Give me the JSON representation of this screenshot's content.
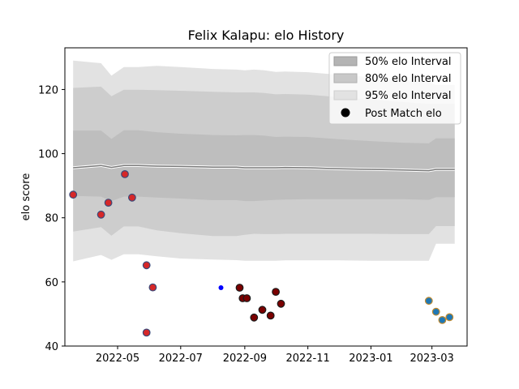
{
  "chart_data": {
    "type": "scatter",
    "title": "Felix Kalapu: elo History",
    "xlabel": "",
    "ylabel": "elo score",
    "xlim": [
      "2022-03-11",
      "2023-04-04"
    ],
    "ylim": [
      40,
      133
    ],
    "x_ticks": [
      "2022-05-01",
      "2022-07-01",
      "2022-09-01",
      "2022-11-01",
      "2023-01-01",
      "2023-03-01"
    ],
    "x_tick_labels": [
      "2022-05",
      "2022-07",
      "2022-09",
      "2022-11",
      "2023-01",
      "2023-03"
    ],
    "y_ticks": [
      40,
      60,
      80,
      100,
      120
    ],
    "y_tick_labels": [
      "40",
      "60",
      "80",
      "100",
      "120"
    ],
    "grid": false,
    "legend_position": "upper-right",
    "legend": [
      {
        "label": "50% elo Interval",
        "kind": "band",
        "color": "#b4b4b4"
      },
      {
        "label": "80% elo Interval",
        "kind": "band",
        "color": "#c8c8c8"
      },
      {
        "label": "95% elo Interval",
        "kind": "band",
        "color": "#e2e2e2"
      },
      {
        "label": "Post Match elo",
        "kind": "marker",
        "color": "#000000"
      }
    ],
    "interval_dates": [
      "2022-03-19",
      "2022-04-15",
      "2022-04-25",
      "2022-05-07",
      "2022-05-21",
      "2022-06-08",
      "2022-07-01",
      "2022-08-01",
      "2022-08-24",
      "2022-09-01",
      "2022-09-10",
      "2022-09-20",
      "2022-10-01",
      "2022-10-10",
      "2022-11-01",
      "2022-12-01",
      "2023-01-01",
      "2023-02-01",
      "2023-02-26",
      "2023-03-05",
      "2023-03-23"
    ],
    "mean": [
      95.6,
      96.3,
      95.7,
      96.3,
      96.3,
      96.1,
      96.0,
      95.8,
      95.8,
      95.6,
      95.6,
      95.6,
      95.6,
      95.7,
      95.6,
      95.3,
      95.1,
      94.9,
      94.7,
      95.1,
      95.1
    ],
    "bands": [
      {
        "name": "95% elo Interval",
        "color": "#e2e2e2",
        "upper": [
          129.0,
          128.2,
          124.3,
          127.0,
          127.0,
          127.4,
          127.0,
          126.4,
          126.2,
          126.0,
          126.2,
          126.0,
          125.5,
          125.6,
          125.4,
          124.6,
          123.9,
          123.0,
          122.2,
          121.4,
          121.4
        ],
        "lower": [
          66.4,
          68.4,
          66.9,
          68.6,
          68.6,
          68.0,
          67.3,
          67.0,
          66.8,
          66.6,
          66.6,
          66.6,
          66.6,
          66.7,
          66.7,
          66.7,
          66.6,
          66.6,
          66.6,
          71.9,
          71.9
        ]
      },
      {
        "name": "80% elo Interval",
        "color": "#cdcdcd",
        "upper": [
          120.5,
          120.9,
          117.9,
          119.9,
          119.9,
          119.8,
          119.6,
          119.3,
          119.1,
          119.1,
          119.1,
          118.9,
          118.5,
          118.6,
          118.4,
          117.6,
          116.9,
          116.1,
          115.5,
          115.5,
          115.5
        ],
        "lower": [
          75.7,
          77.1,
          74.4,
          77.3,
          77.3,
          76.1,
          75.2,
          74.3,
          74.3,
          74.7,
          75.0,
          74.9,
          74.9,
          75.0,
          75.0,
          75.0,
          75.0,
          74.9,
          74.9,
          77.4,
          77.4
        ]
      },
      {
        "name": "50% elo Interval",
        "color": "#bebebe",
        "upper": [
          107.2,
          107.2,
          104.6,
          107.3,
          107.3,
          106.7,
          106.2,
          105.8,
          105.7,
          105.8,
          105.8,
          105.6,
          105.2,
          105.3,
          105.2,
          104.5,
          103.9,
          103.4,
          103.2,
          104.8,
          104.8
        ],
        "lower": [
          86.8,
          86.6,
          85.2,
          86.6,
          86.6,
          86.3,
          86.0,
          85.5,
          85.5,
          85.2,
          85.2,
          85.4,
          85.6,
          85.7,
          85.8,
          85.8,
          85.8,
          85.8,
          85.6,
          86.4,
          86.4
        ]
      }
    ],
    "series": [
      {
        "color": "#d62728",
        "edge": "#3b4a7a",
        "points": [
          {
            "x": "2022-03-19",
            "y": 87.2
          },
          {
            "x": "2022-04-15",
            "y": 81.0
          },
          {
            "x": "2022-04-22",
            "y": 84.7
          },
          {
            "x": "2022-05-08",
            "y": 93.6
          },
          {
            "x": "2022-05-15",
            "y": 86.3
          },
          {
            "x": "2022-05-29",
            "y": 65.2
          },
          {
            "x": "2022-06-04",
            "y": 58.3
          },
          {
            "x": "2022-05-29",
            "y": 44.2
          }
        ]
      },
      {
        "color": "#0000ff",
        "edge": "#0000ff",
        "size": "small",
        "points": [
          {
            "x": "2022-08-09",
            "y": 58.2
          }
        ]
      },
      {
        "color": "#7a0000",
        "edge": "#1a1a1a",
        "points": [
          {
            "x": "2022-08-27",
            "y": 58.2
          },
          {
            "x": "2022-08-30",
            "y": 54.9
          },
          {
            "x": "2022-09-03",
            "y": 54.9
          },
          {
            "x": "2022-09-10",
            "y": 48.9
          },
          {
            "x": "2022-09-18",
            "y": 51.3
          },
          {
            "x": "2022-09-26",
            "y": 49.5
          },
          {
            "x": "2022-10-01",
            "y": 56.9
          },
          {
            "x": "2022-10-06",
            "y": 53.2
          }
        ]
      },
      {
        "color": "#1f77b4",
        "edge": "#c08a30",
        "points": [
          {
            "x": "2023-02-26",
            "y": 54.1
          },
          {
            "x": "2023-03-05",
            "y": 50.7
          },
          {
            "x": "2023-03-11",
            "y": 48.1
          },
          {
            "x": "2023-03-18",
            "y": 49.0
          }
        ]
      }
    ]
  }
}
